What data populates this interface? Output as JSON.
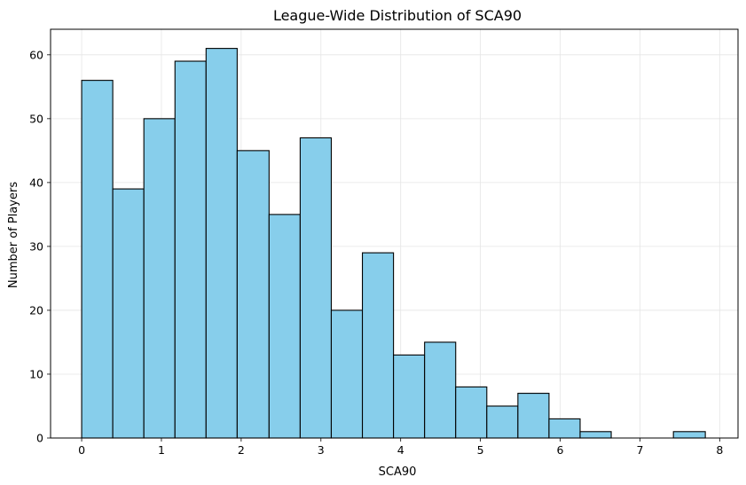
{
  "chart_data": {
    "type": "bar",
    "title": "League-Wide Distribution of SCA90",
    "xlabel": "SCA90",
    "ylabel": "Number of Players",
    "xlim": [
      -0.39,
      8.23
    ],
    "ylim": [
      0,
      64
    ],
    "x_ticks": [
      0,
      1,
      2,
      3,
      4,
      5,
      6,
      7,
      8
    ],
    "y_ticks": [
      0,
      10,
      20,
      30,
      40,
      50,
      60
    ],
    "grid": true,
    "bar_color": "#87CEEB",
    "edge_color": "#000000",
    "bin_edges": [
      0,
      0.39,
      0.78,
      1.17,
      1.56,
      1.95,
      2.35,
      2.74,
      3.13,
      3.52,
      3.91,
      4.3,
      4.69,
      5.08,
      5.47,
      5.86,
      6.25,
      6.64,
      7.03,
      7.42,
      7.82
    ],
    "values": [
      56,
      39,
      50,
      59,
      61,
      45,
      35,
      47,
      20,
      29,
      13,
      15,
      8,
      5,
      7,
      3,
      1,
      0,
      0,
      1
    ]
  }
}
